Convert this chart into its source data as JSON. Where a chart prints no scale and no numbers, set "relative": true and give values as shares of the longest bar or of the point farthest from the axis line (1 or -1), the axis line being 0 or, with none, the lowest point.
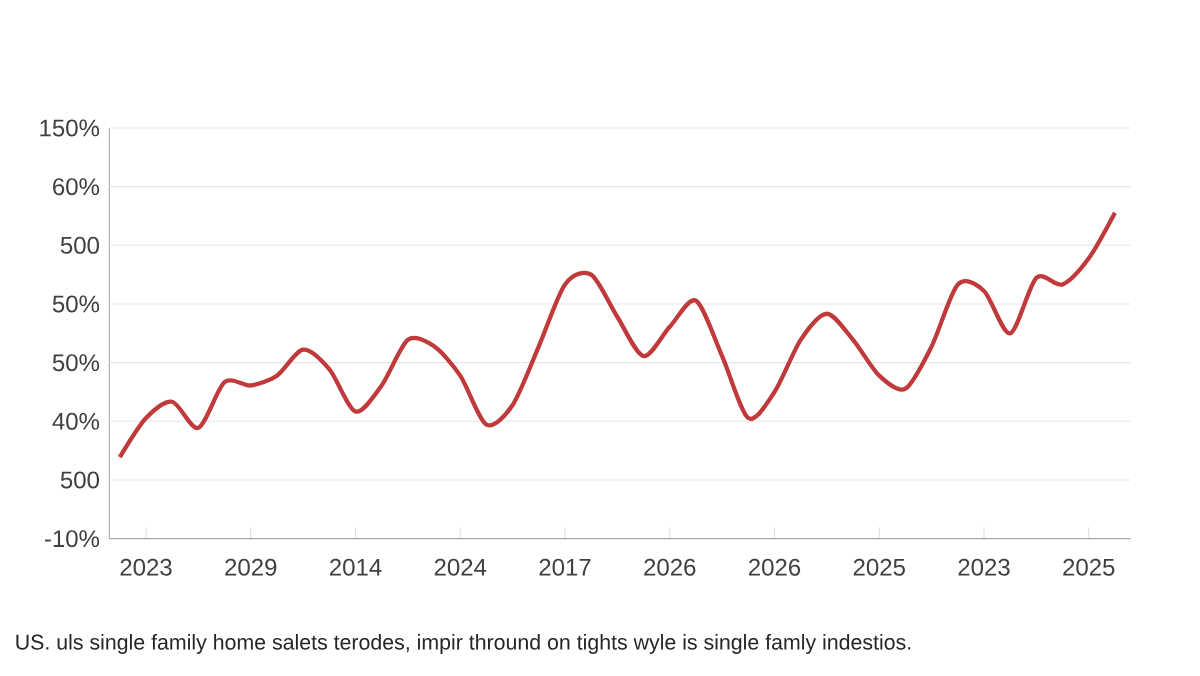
{
  "chart_data": {
    "type": "line",
    "relative": true,
    "categories": [
      null,
      "2023",
      null,
      null,
      null,
      "2029",
      null,
      null,
      null,
      "2014",
      null,
      null,
      null,
      "2024",
      null,
      null,
      null,
      "2017",
      null,
      null,
      null,
      "2026",
      null,
      null,
      null,
      "2026",
      null,
      null,
      null,
      "2025",
      null,
      null,
      null,
      "2023",
      null,
      null,
      null,
      "2025",
      null
    ],
    "series": [
      {
        "color": "#c0393b",
        "values": [
          0.25,
          0.37,
          0.42,
          0.34,
          0.48,
          0.47,
          0.5,
          0.58,
          0.52,
          0.39,
          0.47,
          0.61,
          0.59,
          0.5,
          0.35,
          0.41,
          0.59,
          0.78,
          0.81,
          0.68,
          0.56,
          0.65,
          0.73,
          0.56,
          0.37,
          0.45,
          0.61,
          0.69,
          0.61,
          0.5,
          0.46,
          0.59,
          0.78,
          0.76,
          0.63,
          0.8,
          0.78,
          0.86,
          1
        ]
      }
    ],
    "grid": "y",
    "line_style": "solid",
    "annotations": [
      "-10%",
      "500",
      "40%",
      "50%",
      "50%",
      "500",
      "60%",
      "150%",
      "US. uls single family home salets terodes, impir thround on tights wyle is single famly indestios."
    ]
  }
}
